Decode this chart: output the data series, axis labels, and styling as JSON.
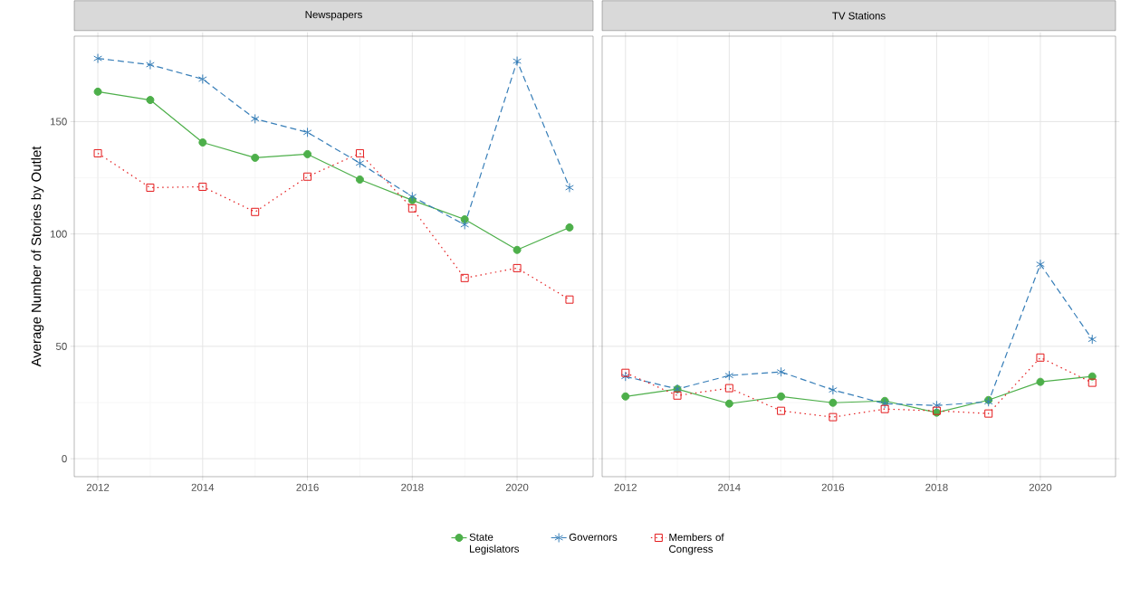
{
  "chart_data": [
    {
      "type": "line",
      "title": "Newspapers",
      "ylabel": "Average Number of Stories by Outlet",
      "x": [
        2012,
        2013,
        2014,
        2015,
        2016,
        2017,
        2018,
        2019,
        2020,
        2021
      ],
      "xlim": [
        2011.55,
        2021.45
      ],
      "ylim": [
        -8,
        188
      ],
      "xticks": [
        2012,
        2014,
        2016,
        2018,
        2020
      ],
      "yticks": [
        0,
        50,
        100,
        150
      ],
      "grid": true,
      "legend": "bottom",
      "series": [
        {
          "name": "State Legislators",
          "color": "#4daf4a",
          "marker": "circle",
          "line_style": "solid",
          "values": [
            163.3,
            159.6,
            140.7,
            133.9,
            135.5,
            124.2,
            115,
            106.5,
            92.9,
            102.9
          ]
        },
        {
          "name": "Governors",
          "color": "#377eb8",
          "marker": "cross",
          "line_style": "dashed",
          "values": [
            178.1,
            175.3,
            168.9,
            151.2,
            145.2,
            131.5,
            116.6,
            104.1,
            176.9,
            120.6
          ]
        },
        {
          "name": "Members of Congress",
          "color": "#e41a1c",
          "marker": "square",
          "line_style": "dotted",
          "values": [
            135.9,
            120.6,
            121,
            109.8,
            125.5,
            135.9,
            111.4,
            80.4,
            84.8,
            70.8
          ]
        }
      ]
    },
    {
      "type": "line",
      "title": "TV Stations",
      "x": [
        2012,
        2013,
        2014,
        2015,
        2016,
        2017,
        2018,
        2019,
        2020,
        2021
      ],
      "xlim": [
        2011.55,
        2021.45
      ],
      "ylim": [
        -8,
        188
      ],
      "xticks": [
        2012,
        2014,
        2016,
        2018,
        2020
      ],
      "yticks": [
        0,
        50,
        100,
        150
      ],
      "grid": true,
      "tick_labels": "x",
      "series": [
        {
          "color": "#4daf4a",
          "marker": "circle",
          "line_style": "solid",
          "values": [
            27.7,
            31,
            24.5,
            27.7,
            24.9,
            25.7,
            20.5,
            26.1,
            34.2,
            36.6
          ]
        },
        {
          "color": "#377eb8",
          "marker": "cross",
          "line_style": "dashed",
          "values": [
            36.6,
            31,
            37,
            38.6,
            30.6,
            24.5,
            23.7,
            25.3,
            86.5,
            53.1
          ]
        },
        {
          "color": "#e41a1c",
          "marker": "square",
          "line_style": "dotted",
          "values": [
            38.2,
            28.1,
            31.4,
            21.3,
            18.5,
            22.1,
            21.3,
            20.1,
            45,
            33.8
          ]
        }
      ]
    }
  ]
}
